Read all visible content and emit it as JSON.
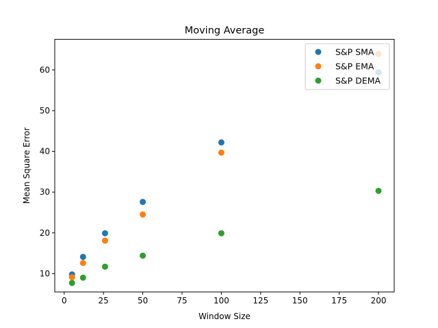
{
  "chart_data": {
    "type": "scatter",
    "title": "Moving Average",
    "xlabel": "Window Size",
    "ylabel": "Mean Square Error",
    "xlim": [
      -6,
      210
    ],
    "ylim": [
      5.5,
      67.5
    ],
    "xticks": [
      0,
      25,
      50,
      75,
      100,
      125,
      150,
      175,
      200
    ],
    "yticks": [
      10,
      20,
      30,
      40,
      50,
      60
    ],
    "grid": false,
    "legend": "top-right",
    "x": [
      5,
      12,
      26,
      50,
      100,
      200
    ],
    "series": [
      {
        "name": "S&P SMA",
        "color": "#1f77b4",
        "values": [
          9.8,
          14.1,
          19.9,
          27.6,
          42.2,
          59.4
        ]
      },
      {
        "name": "S&P EMA",
        "color": "#ff7f0e",
        "values": [
          9.1,
          12.6,
          18.1,
          24.5,
          39.7,
          63.9
        ]
      },
      {
        "name": "S&P DEMA",
        "color": "#2ca02c",
        "values": [
          7.7,
          9.0,
          11.7,
          14.4,
          19.9,
          30.3
        ]
      }
    ]
  }
}
